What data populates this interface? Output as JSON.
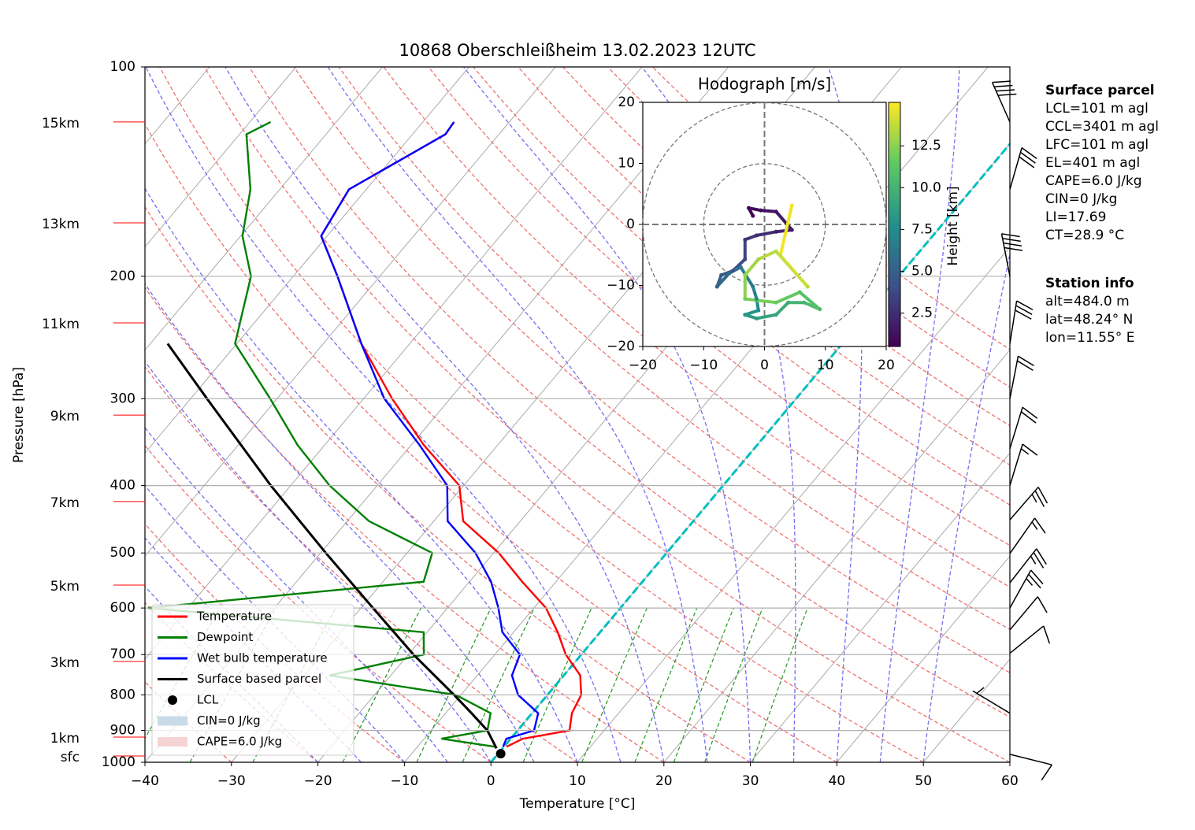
{
  "chart_data": {
    "type": "skewt",
    "title": "10868 Oberschleißheim 13.02.2023 12UTC",
    "xlabel": "Temperature [°C]",
    "ylabel": "Pressure [hPa]",
    "log_scale_y": true,
    "grid": true,
    "xlim": [
      -40,
      60
    ],
    "xticks": [
      {
        "value": -40,
        "label": "−40"
      },
      {
        "value": -30,
        "label": "−30"
      },
      {
        "value": -20,
        "label": "−20"
      },
      {
        "value": -10,
        "label": "−10"
      },
      0,
      10,
      20,
      30,
      40,
      50,
      60
    ],
    "ylim": [
      1000,
      100
    ],
    "yticks": [
      100,
      200,
      300,
      400,
      500,
      600,
      700,
      800,
      900,
      1000
    ],
    "series": [
      {
        "name": "Temperature",
        "color": "#ff0000",
        "pressure": [
          950,
          925,
          900,
          850,
          800,
          750,
          700,
          650,
          600,
          550,
          500,
          450,
          400,
          350,
          300,
          250,
          200,
          175,
          150,
          125,
          120
        ],
        "values": [
          0.3,
          1.4,
          6.0,
          4.6,
          3.9,
          1.9,
          -1.8,
          -4.9,
          -8.6,
          -13.9,
          -19.4,
          -26.6,
          -30.5,
          -38.5,
          -46.7,
          -55.6,
          -64.9,
          -70.7,
          -72.0,
          -66.2,
          -66.4
        ]
      },
      {
        "name": "Dewpoint",
        "color": "#008000",
        "pressure": [
          950,
          925,
          900,
          850,
          800,
          750,
          700,
          650,
          600,
          550,
          500,
          450,
          400,
          350,
          300,
          250,
          200,
          175,
          150,
          125,
          120
        ],
        "values": [
          -1.0,
          -8.0,
          -3.5,
          -4.8,
          -10.6,
          -27.1,
          -18.2,
          -20.4,
          -54.6,
          -25.3,
          -27.1,
          -37.5,
          -45.5,
          -53.1,
          -60.8,
          -70.2,
          -74.9,
          -79.8,
          -83.4,
          -89.2,
          -87.6
        ]
      },
      {
        "name": "Wet bulb temperature",
        "color": "#0000ff",
        "pressure": [
          950,
          925,
          900,
          850,
          800,
          750,
          700,
          650,
          600,
          550,
          500,
          450,
          400,
          350,
          300,
          250,
          200,
          175,
          150,
          125,
          120
        ],
        "values": [
          -0.1,
          -0.5,
          1.9,
          0.7,
          -3.4,
          -6.0,
          -7.1,
          -11.3,
          -14.1,
          -17.5,
          -22.1,
          -28.4,
          -31.9,
          -39.0,
          -47.6,
          -55.6,
          -64.9,
          -70.7,
          -72.0,
          -66.2,
          -66.4
        ]
      },
      {
        "name": "Surface based parcel",
        "color": "#000000",
        "pressure": [
          955,
          900,
          850,
          800,
          700,
          600,
          500,
          400,
          300,
          250
        ],
        "values": [
          -0.7,
          -3.5,
          -7.0,
          -10.8,
          -19.4,
          -28.6,
          -39.4,
          -52.3,
          -68.1,
          -78.0
        ]
      }
    ],
    "lcl": {
      "name": "LCL",
      "color": "#000000",
      "pressure": 972,
      "temperature": 0.3
    },
    "shading": [
      {
        "name": "CIN=0 J/kg",
        "color": "#c9dbe9"
      },
      {
        "name": "CAPE=6.0 J/kg",
        "color": "#f6d3d3"
      }
    ],
    "height_markers": [
      {
        "label": "15km",
        "pressure": 120
      },
      {
        "label": "13km",
        "pressure": 167.6
      },
      {
        "label": "11km",
        "pressure": 233.4
      },
      {
        "label": "9km",
        "pressure": 316.7
      },
      {
        "label": "7km",
        "pressure": 421.7
      },
      {
        "label": "5km",
        "pressure": 556.1
      },
      {
        "label": "3km",
        "pressure": 716.2
      },
      {
        "label": "1km",
        "pressure": 920
      },
      {
        "label": "sfc",
        "pressure": 979.3
      }
    ],
    "wind": {
      "pressure": [
        120,
        150,
        200,
        250,
        300,
        354,
        400,
        448,
        501,
        552,
        600,
        645,
        697,
        850,
        974
      ],
      "direction": [
        336,
        16,
        349,
        9,
        11,
        17,
        17,
        41,
        35,
        38,
        29,
        40,
        51,
        301,
        104
      ],
      "speed": [
        40,
        30,
        40,
        30,
        20,
        20,
        15,
        25,
        15,
        25,
        25,
        10,
        10,
        5,
        10
      ]
    },
    "hodograph": {
      "title": "Hodograph [m/s]",
      "colorbar_label": "Height [km]",
      "colormap": "viridis",
      "xlim": [
        -20,
        20
      ],
      "ylim": [
        -20,
        20
      ],
      "xticks": [
        {
          "value": -20,
          "label": "−20"
        },
        {
          "value": -10,
          "label": "−10"
        },
        0,
        10,
        20
      ],
      "yticks": [
        {
          "value": -20,
          "label": "−20"
        },
        {
          "value": -10,
          "label": "−10"
        },
        0,
        10,
        20
      ],
      "clim": [
        0.5,
        15.1
      ],
      "cticks": [
        2.5,
        {
          "value": 5,
          "label": "5.0"
        },
        7.5,
        {
          "value": 10,
          "label": "10.0"
        },
        12.5
      ],
      "u": [
        -1.9,
        -2.6,
        -0.6,
        1.9,
        4.5,
        1.9,
        -1.3,
        -3.2,
        -3.2,
        -5.2,
        -7.1,
        -7.8,
        -5.8,
        -3.9,
        -1.9,
        -1.3,
        -1.0,
        -3.2,
        -1.3,
        1.9,
        3.9,
        6.5,
        9.1,
        5.8,
        1.9,
        -3.2,
        -3.2,
        -1.0,
        1.9,
        7.1,
        2.6,
        4.5
      ],
      "v": [
        1.4,
        2.7,
        2.3,
        2.1,
        -0.9,
        -1.2,
        -1.8,
        -2.5,
        -5.7,
        -7.6,
        -8.3,
        -10.2,
        -8.0,
        -7.0,
        -10.2,
        -12.2,
        -14.1,
        -14.8,
        -15.4,
        -14.8,
        -12.8,
        -12.8,
        -13.9,
        -11.1,
        -12.8,
        -12.2,
        -8.3,
        -5.7,
        -4.4,
        -10.2,
        -5.1,
        3.1
      ],
      "height": [
        0.5,
        0.8,
        1.0,
        1.3,
        1.6,
        2.0,
        2.5,
        3.0,
        3.5,
        4.0,
        4.5,
        5.0,
        5.5,
        6.0,
        6.5,
        7.0,
        7.5,
        8.0,
        8.5,
        9.0,
        9.5,
        10.0,
        10.5,
        11.0,
        11.5,
        12.0,
        12.5,
        13.0,
        13.5,
        13.7,
        14.0,
        14.8
      ]
    },
    "surface_parcel": {
      "title": "Surface parcel",
      "lines": [
        "LCL=101 m agl",
        "CCL=3401 m agl",
        "LFC=101 m agl",
        "EL=401 m agl",
        "CAPE=6.0 J/kg",
        "CIN=0 J/kg",
        "LI=17.69",
        "CT=28.9 °C"
      ]
    },
    "station_info": {
      "title": "Station info",
      "lines": [
        "alt=484.0 m",
        "lat=48.24° N",
        "lon=11.55° E"
      ]
    }
  }
}
